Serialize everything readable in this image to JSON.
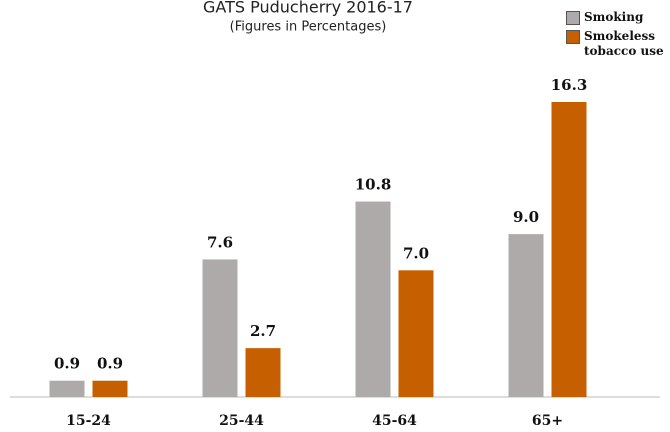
{
  "chart_data": {
    "type": "bar",
    "title": "GATS Puducherry 2016-17",
    "subtitle": "(Figures in Percentages)",
    "categories": [
      "15-24",
      "25-44",
      "45-64",
      "65+"
    ],
    "series": [
      {
        "name": "Smoking",
        "color": "#aeaaaa",
        "values": [
          0.9,
          7.6,
          10.8,
          9.0
        ],
        "value_labels": [
          "0.9",
          "7.6",
          "10.8",
          "9.0"
        ]
      },
      {
        "name": "Smokeless tobacco use",
        "color": "#c65f00",
        "values": [
          0.9,
          2.7,
          7.0,
          16.3
        ],
        "value_labels": [
          "0.9",
          "2.7",
          "7.0",
          "16.3"
        ]
      }
    ],
    "legend": "top-right"
  }
}
